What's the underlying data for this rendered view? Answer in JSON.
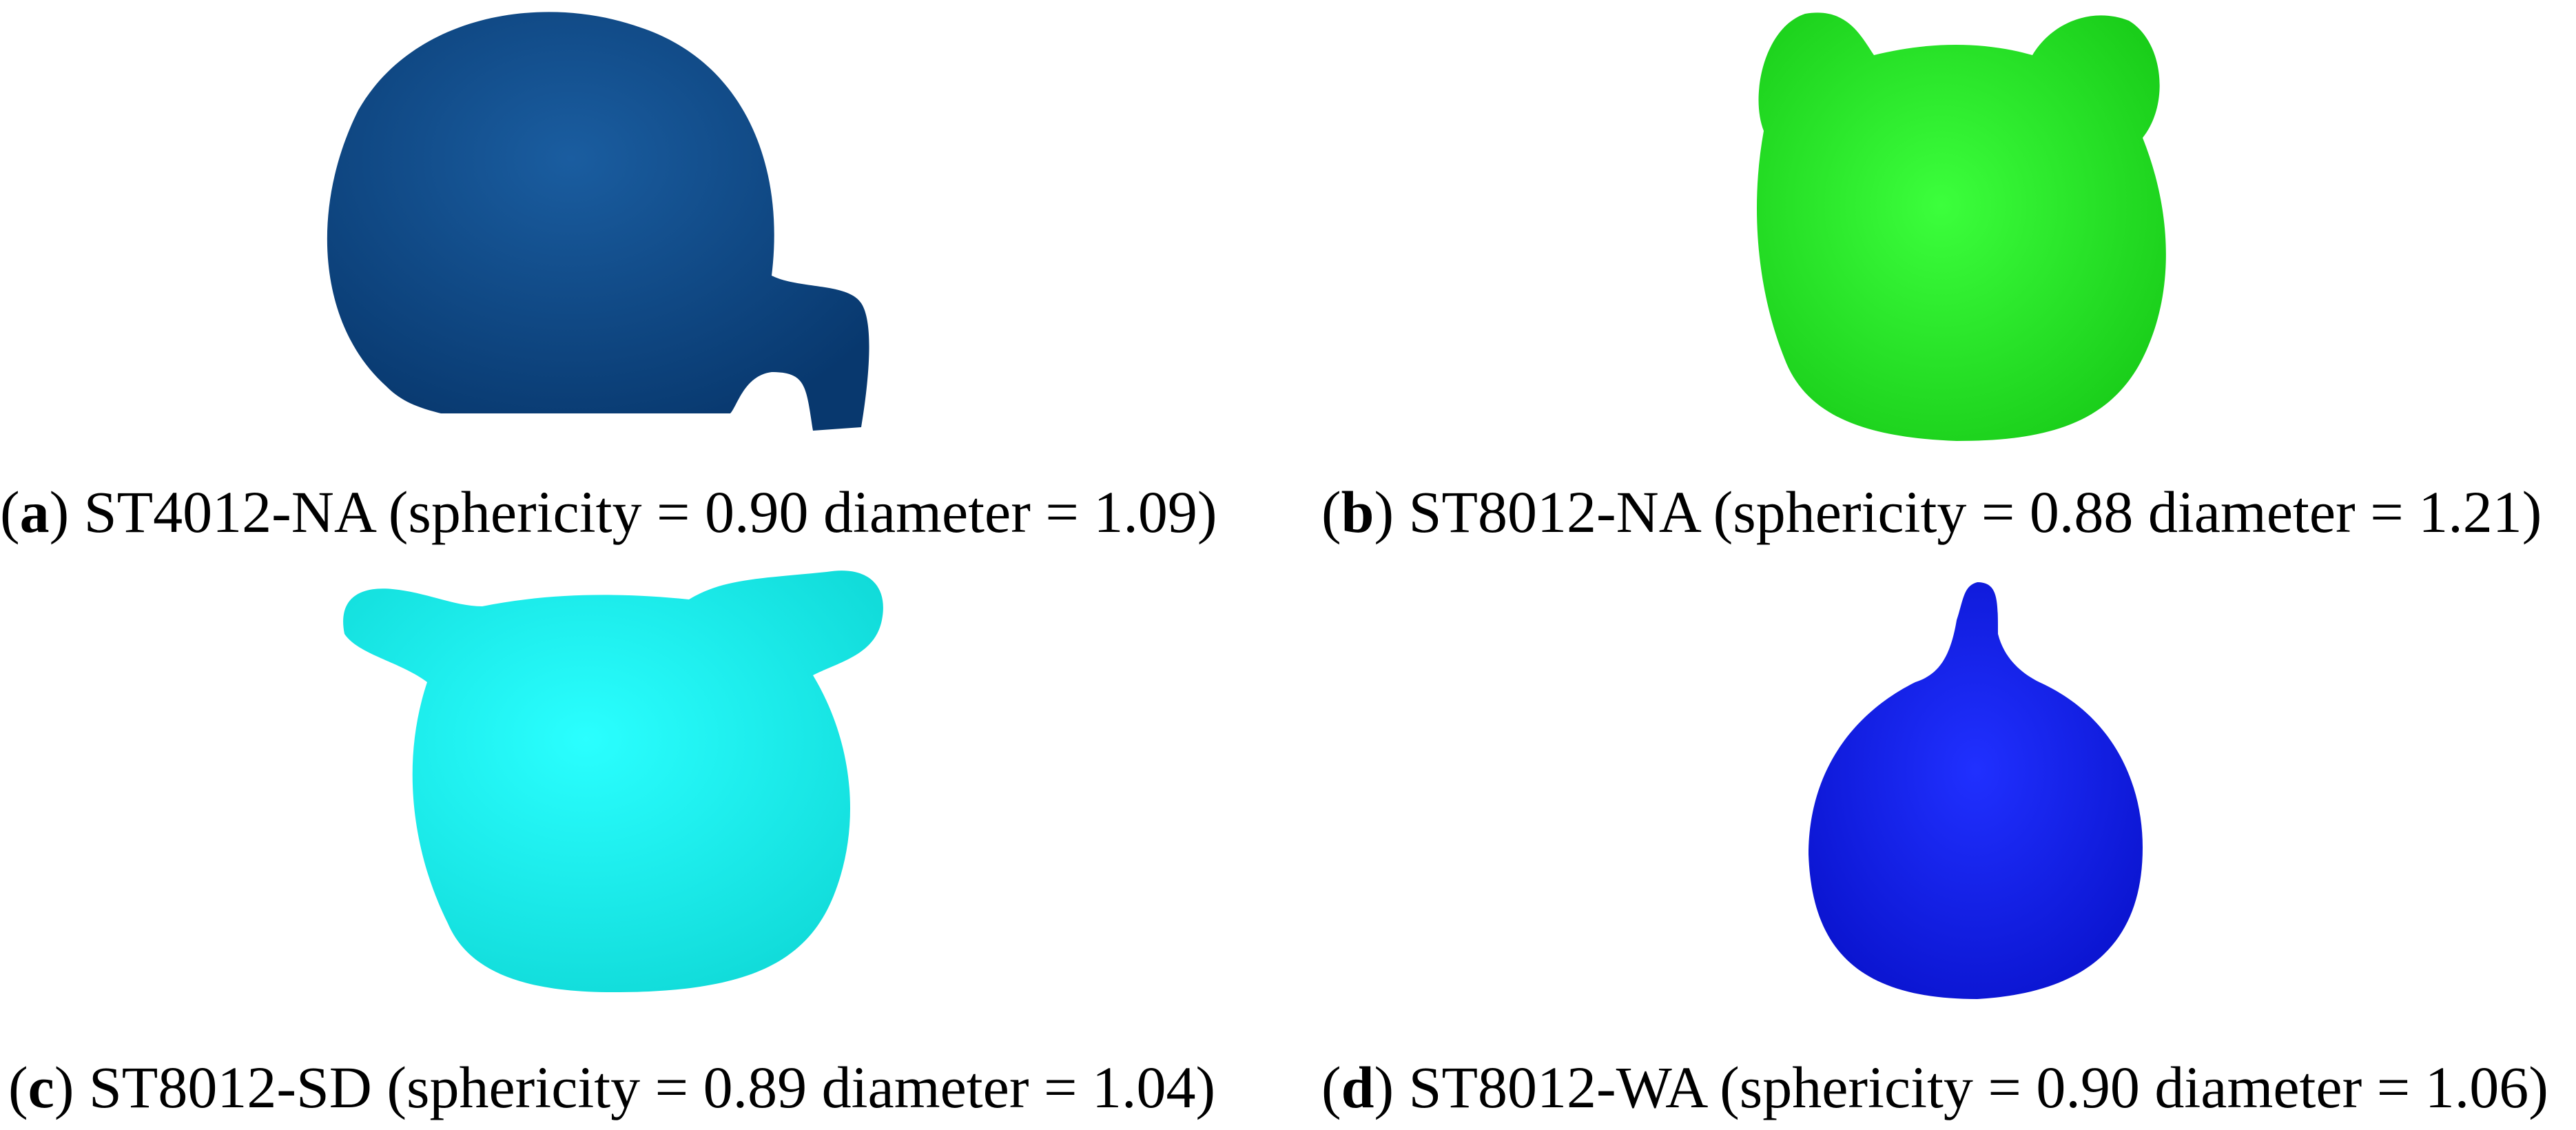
{
  "figure": {
    "panels": [
      {
        "letter": "a",
        "label": "ST4012-NA (sphericity = 0.90 diameter = 1.09)",
        "color": "#0d4a8a"
      },
      {
        "letter": "b",
        "label": "ST8012-NA (sphericity = 0.88 diameter = 1.21)",
        "color": "#1ee61e"
      },
      {
        "letter": "c",
        "label": "ST8012-SD (sphericity = 0.89 diameter = 1.04)",
        "color": "#11f0ee"
      },
      {
        "letter": "d",
        "label": "ST8012-WA (sphericity = 0.90 diameter = 1.06)",
        "color": "#0a14e0"
      }
    ]
  }
}
